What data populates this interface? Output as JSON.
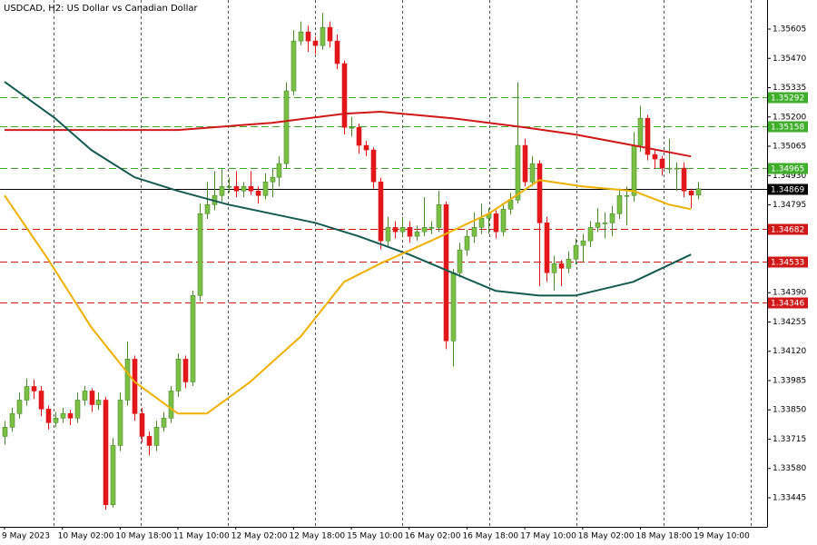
{
  "chart_data": {
    "type": "candlestick",
    "title": "USDCAD, H2:  US Dollar vs Canadian Dollar",
    "categories": [
      "9 May 2023",
      null,
      null,
      null,
      null,
      null,
      null,
      null,
      "10 May 02:00",
      null,
      null,
      null,
      null,
      null,
      null,
      null,
      "10 May 18:00",
      null,
      null,
      null,
      null,
      null,
      null,
      null,
      "11 May 10:00",
      null,
      null,
      null,
      null,
      null,
      null,
      null,
      "12 May 02:00",
      null,
      null,
      null,
      null,
      null,
      null,
      null,
      "12 May 18:00",
      null,
      null,
      null,
      null,
      null,
      null,
      null,
      "15 May 10:00",
      null,
      null,
      null,
      null,
      null,
      null,
      null,
      "16 May 02:00",
      null,
      null,
      null,
      null,
      null,
      null,
      null,
      "16 May 18:00",
      null,
      null,
      null,
      null,
      null,
      null,
      null,
      "17 May 10:00",
      null,
      null,
      null,
      null,
      null,
      null,
      null,
      "18 May 02:00",
      null,
      null,
      null,
      null,
      null,
      null,
      null,
      "18 May 18:00",
      null,
      null,
      null,
      null,
      null,
      null,
      null,
      "19 May 10:00"
    ],
    "open": [
      1.33728,
      1.3377,
      1.33833,
      1.33895,
      1.33958,
      1.33937,
      1.33854,
      1.33791,
      1.33812,
      1.33833,
      1.33812,
      1.33895,
      1.33937,
      1.33874,
      1.33895,
      1.33413,
      1.33686,
      1.33895,
      1.34084,
      1.33833,
      1.33728,
      1.33686,
      1.3377,
      1.33812,
      1.33937,
      1.34084,
      1.33979,
      1.34377,
      1.34754,
      1.34796,
      1.34838,
      1.3488,
      1.3488,
      1.34859,
      1.3488,
      1.34859,
      1.34838,
      1.34901,
      1.34922,
      1.34985,
      1.3532,
      1.3555,
      1.35592,
      1.3555,
      1.35529,
      1.35613,
      1.3555,
      1.35446,
      1.35152,
      1.35152,
      1.35069,
      1.35048,
      1.34901,
      1.34629,
      1.34691,
      1.34671,
      1.34691,
      1.3465,
      1.34671,
      1.34691,
      1.34691,
      1.34796,
      1.34168,
      1.34482,
      1.34587,
      1.3465,
      1.34691,
      1.34733,
      1.34754,
      1.34671,
      1.34775,
      1.34817,
      1.35069,
      1.34901,
      1.34985,
      1.34712,
      1.34482,
      1.34524,
      1.34503,
      1.34545,
      1.34608,
      1.34629,
      1.34691,
      1.34712,
      1.34712,
      1.34754,
      1.34838,
      1.34838,
      1.35069,
      1.35194,
      1.35027,
      1.35006,
      1.34964,
      1.34964,
      1.34964,
      1.34859,
      1.3484
    ],
    "high": [
      1.338,
      1.3386,
      1.3393,
      1.33995,
      1.3399,
      1.3396,
      1.3387,
      1.3384,
      1.3386,
      1.3385,
      1.3393,
      1.3396,
      1.3395,
      1.3393,
      1.3391,
      1.3372,
      1.3393,
      1.34165,
      1.341,
      1.3386,
      1.3375,
      1.338,
      1.3384,
      1.3396,
      1.3411,
      1.341,
      1.344,
      1.348,
      1.349,
      1.3495,
      1.3496,
      1.3492,
      1.3495,
      1.349,
      1.3495,
      1.3488,
      1.3494,
      1.3496,
      1.3502,
      1.3536,
      1.356,
      1.3564,
      1.3562,
      1.3557,
      1.3568,
      1.3564,
      1.3558,
      1.3546,
      1.352,
      1.3517,
      1.3509,
      1.3506,
      1.3492,
      1.3474,
      1.3472,
      1.3474,
      1.3472,
      1.347,
      1.3483,
      1.3472,
      1.3486,
      1.3481,
      1.345,
      1.3462,
      1.3468,
      1.3476,
      1.348,
      1.3478,
      1.3477,
      1.348,
      1.3485,
      1.3536,
      1.351,
      1.3502,
      1.35,
      1.3474,
      1.3456,
      1.3454,
      1.3458,
      1.3464,
      1.3466,
      1.3472,
      1.3478,
      1.3476,
      1.3479,
      1.3487,
      1.3488,
      1.3513,
      1.3525,
      1.3521,
      1.3505,
      1.3502,
      1.351,
      1.3499,
      1.3499,
      1.3487,
      1.349
    ],
    "low": [
      1.3369,
      1.3375,
      1.3381,
      1.3387,
      1.339,
      1.3382,
      1.3376,
      1.3377,
      1.3379,
      1.3378,
      1.3379,
      1.3387,
      1.3384,
      1.3385,
      1.3339,
      1.334,
      1.3366,
      1.3387,
      1.338,
      1.337,
      1.3364,
      1.3366,
      1.3375,
      1.3379,
      1.3391,
      1.3395,
      1.3396,
      1.3435,
      1.3473,
      1.3477,
      1.3481,
      1.3485,
      1.3483,
      1.3483,
      1.3484,
      1.348,
      1.3482,
      1.3483,
      1.3488,
      1.3496,
      1.353,
      1.3553,
      1.355,
      1.3549,
      1.3551,
      1.3552,
      1.3542,
      1.3512,
      1.3511,
      1.3503,
      1.3502,
      1.3487,
      1.3459,
      1.346,
      1.3464,
      1.3465,
      1.3462,
      1.3463,
      1.3465,
      1.3466,
      1.3467,
      1.3413,
      1.3405,
      1.3446,
      1.3456,
      1.3462,
      1.3466,
      1.3466,
      1.3464,
      1.3465,
      1.3475,
      1.348,
      1.3488,
      1.3488,
      1.3442,
      1.3444,
      1.344,
      1.3442,
      1.3448,
      1.3452,
      1.3453,
      1.346,
      1.3467,
      1.3464,
      1.3465,
      1.3473,
      1.347,
      1.3481,
      1.3504,
      1.35,
      1.3496,
      1.3493,
      1.3494,
      1.3486,
      1.3483,
      1.3478,
      1.3482
    ],
    "close": [
      1.3377,
      1.33833,
      1.33895,
      1.33958,
      1.33937,
      1.33854,
      1.33791,
      1.33812,
      1.33833,
      1.33812,
      1.33895,
      1.33937,
      1.33874,
      1.33895,
      1.33413,
      1.33686,
      1.33895,
      1.34084,
      1.33833,
      1.33728,
      1.33686,
      1.3377,
      1.33812,
      1.33937,
      1.34084,
      1.33979,
      1.34377,
      1.34754,
      1.34796,
      1.34838,
      1.3488,
      1.3488,
      1.34859,
      1.3488,
      1.34859,
      1.34838,
      1.34901,
      1.34922,
      1.34985,
      1.3532,
      1.3555,
      1.35592,
      1.3555,
      1.35529,
      1.35613,
      1.3555,
      1.35446,
      1.35152,
      1.35152,
      1.35069,
      1.35048,
      1.34901,
      1.34629,
      1.34691,
      1.34671,
      1.34691,
      1.3465,
      1.34671,
      1.34691,
      1.34691,
      1.34796,
      1.34168,
      1.34482,
      1.34587,
      1.3465,
      1.34691,
      1.34733,
      1.34754,
      1.34671,
      1.34775,
      1.34817,
      1.35069,
      1.34901,
      1.34985,
      1.34712,
      1.34482,
      1.34524,
      1.34503,
      1.34545,
      1.34608,
      1.34629,
      1.34691,
      1.34712,
      1.34712,
      1.34754,
      1.34838,
      1.34838,
      1.35069,
      1.35194,
      1.35027,
      1.35006,
      1.34964,
      1.34964,
      1.34964,
      1.34859,
      1.3484,
      1.34869
    ],
    "up_color": "#7cbf45",
    "down_color": "#e3161b",
    "lines": [
      {
        "color": "#d01818",
        "x": [
          0,
          12,
          24,
          37,
          47,
          52,
          62,
          72,
          79,
          87,
          95
        ],
        "values": [
          1.3514,
          1.3514,
          1.3514,
          1.35173,
          1.35215,
          1.35224,
          1.35194,
          1.35152,
          1.35119,
          1.35069,
          1.35018
        ]
      },
      {
        "color": "#155a52",
        "x": [
          0,
          7,
          12,
          18,
          24,
          31,
          37,
          43,
          49,
          56,
          62,
          68,
          74,
          79,
          87,
          95
        ],
        "values": [
          1.35362,
          1.35194,
          1.35048,
          1.34922,
          1.34859,
          1.34796,
          1.34754,
          1.34712,
          1.3465,
          1.34566,
          1.34482,
          1.34398,
          1.34377,
          1.34377,
          1.3444,
          1.34566
        ]
      },
      {
        "color": "#f0b000",
        "x": [
          0,
          6,
          12,
          18,
          24,
          28,
          34,
          41,
          47,
          52,
          59,
          67,
          74,
          80,
          87,
          92,
          95
        ],
        "values": [
          1.34838,
          1.34545,
          1.34231,
          1.33979,
          1.33833,
          1.33833,
          1.33979,
          1.34189,
          1.3444,
          1.34524,
          1.34629,
          1.34754,
          1.34909,
          1.3488,
          1.34859,
          1.34796,
          1.34775
        ]
      }
    ],
    "levels": [
      {
        "value": 1.35292,
        "color": "#3fae2a",
        "line": "dashed"
      },
      {
        "value": 1.35158,
        "color": "#3fae2a",
        "line": "dashed"
      },
      {
        "value": 1.34965,
        "color": "#3fae2a",
        "line": "dashed"
      },
      {
        "value": 1.34869,
        "color": "#000000",
        "line": "solid"
      },
      {
        "value": 1.34682,
        "color": "#d01818",
        "line": "dashed"
      },
      {
        "value": 1.34533,
        "color": "#d01818",
        "line": "dashed"
      },
      {
        "value": 1.34346,
        "color": "#d01818",
        "line": "dashed"
      }
    ],
    "ylim": [
      1.33311,
      1.35739
    ],
    "yticks": [
      1.35605,
      {
        "value": 1.3547,
        "label": "1.35470"
      },
      1.35335,
      {
        "value": 1.352,
        "label": "1.35200"
      },
      1.35065,
      {
        "value": 1.3493,
        "label": "1.34930"
      },
      1.34795,
      {
        "value": 1.3439,
        "label": "1.34390"
      },
      1.34255,
      {
        "value": 1.3412,
        "label": "1.34120"
      },
      1.33985,
      {
        "value": 1.3385,
        "label": "1.33850"
      },
      1.33715,
      {
        "value": 1.3358,
        "label": "1.33580"
      },
      1.33445
    ]
  }
}
